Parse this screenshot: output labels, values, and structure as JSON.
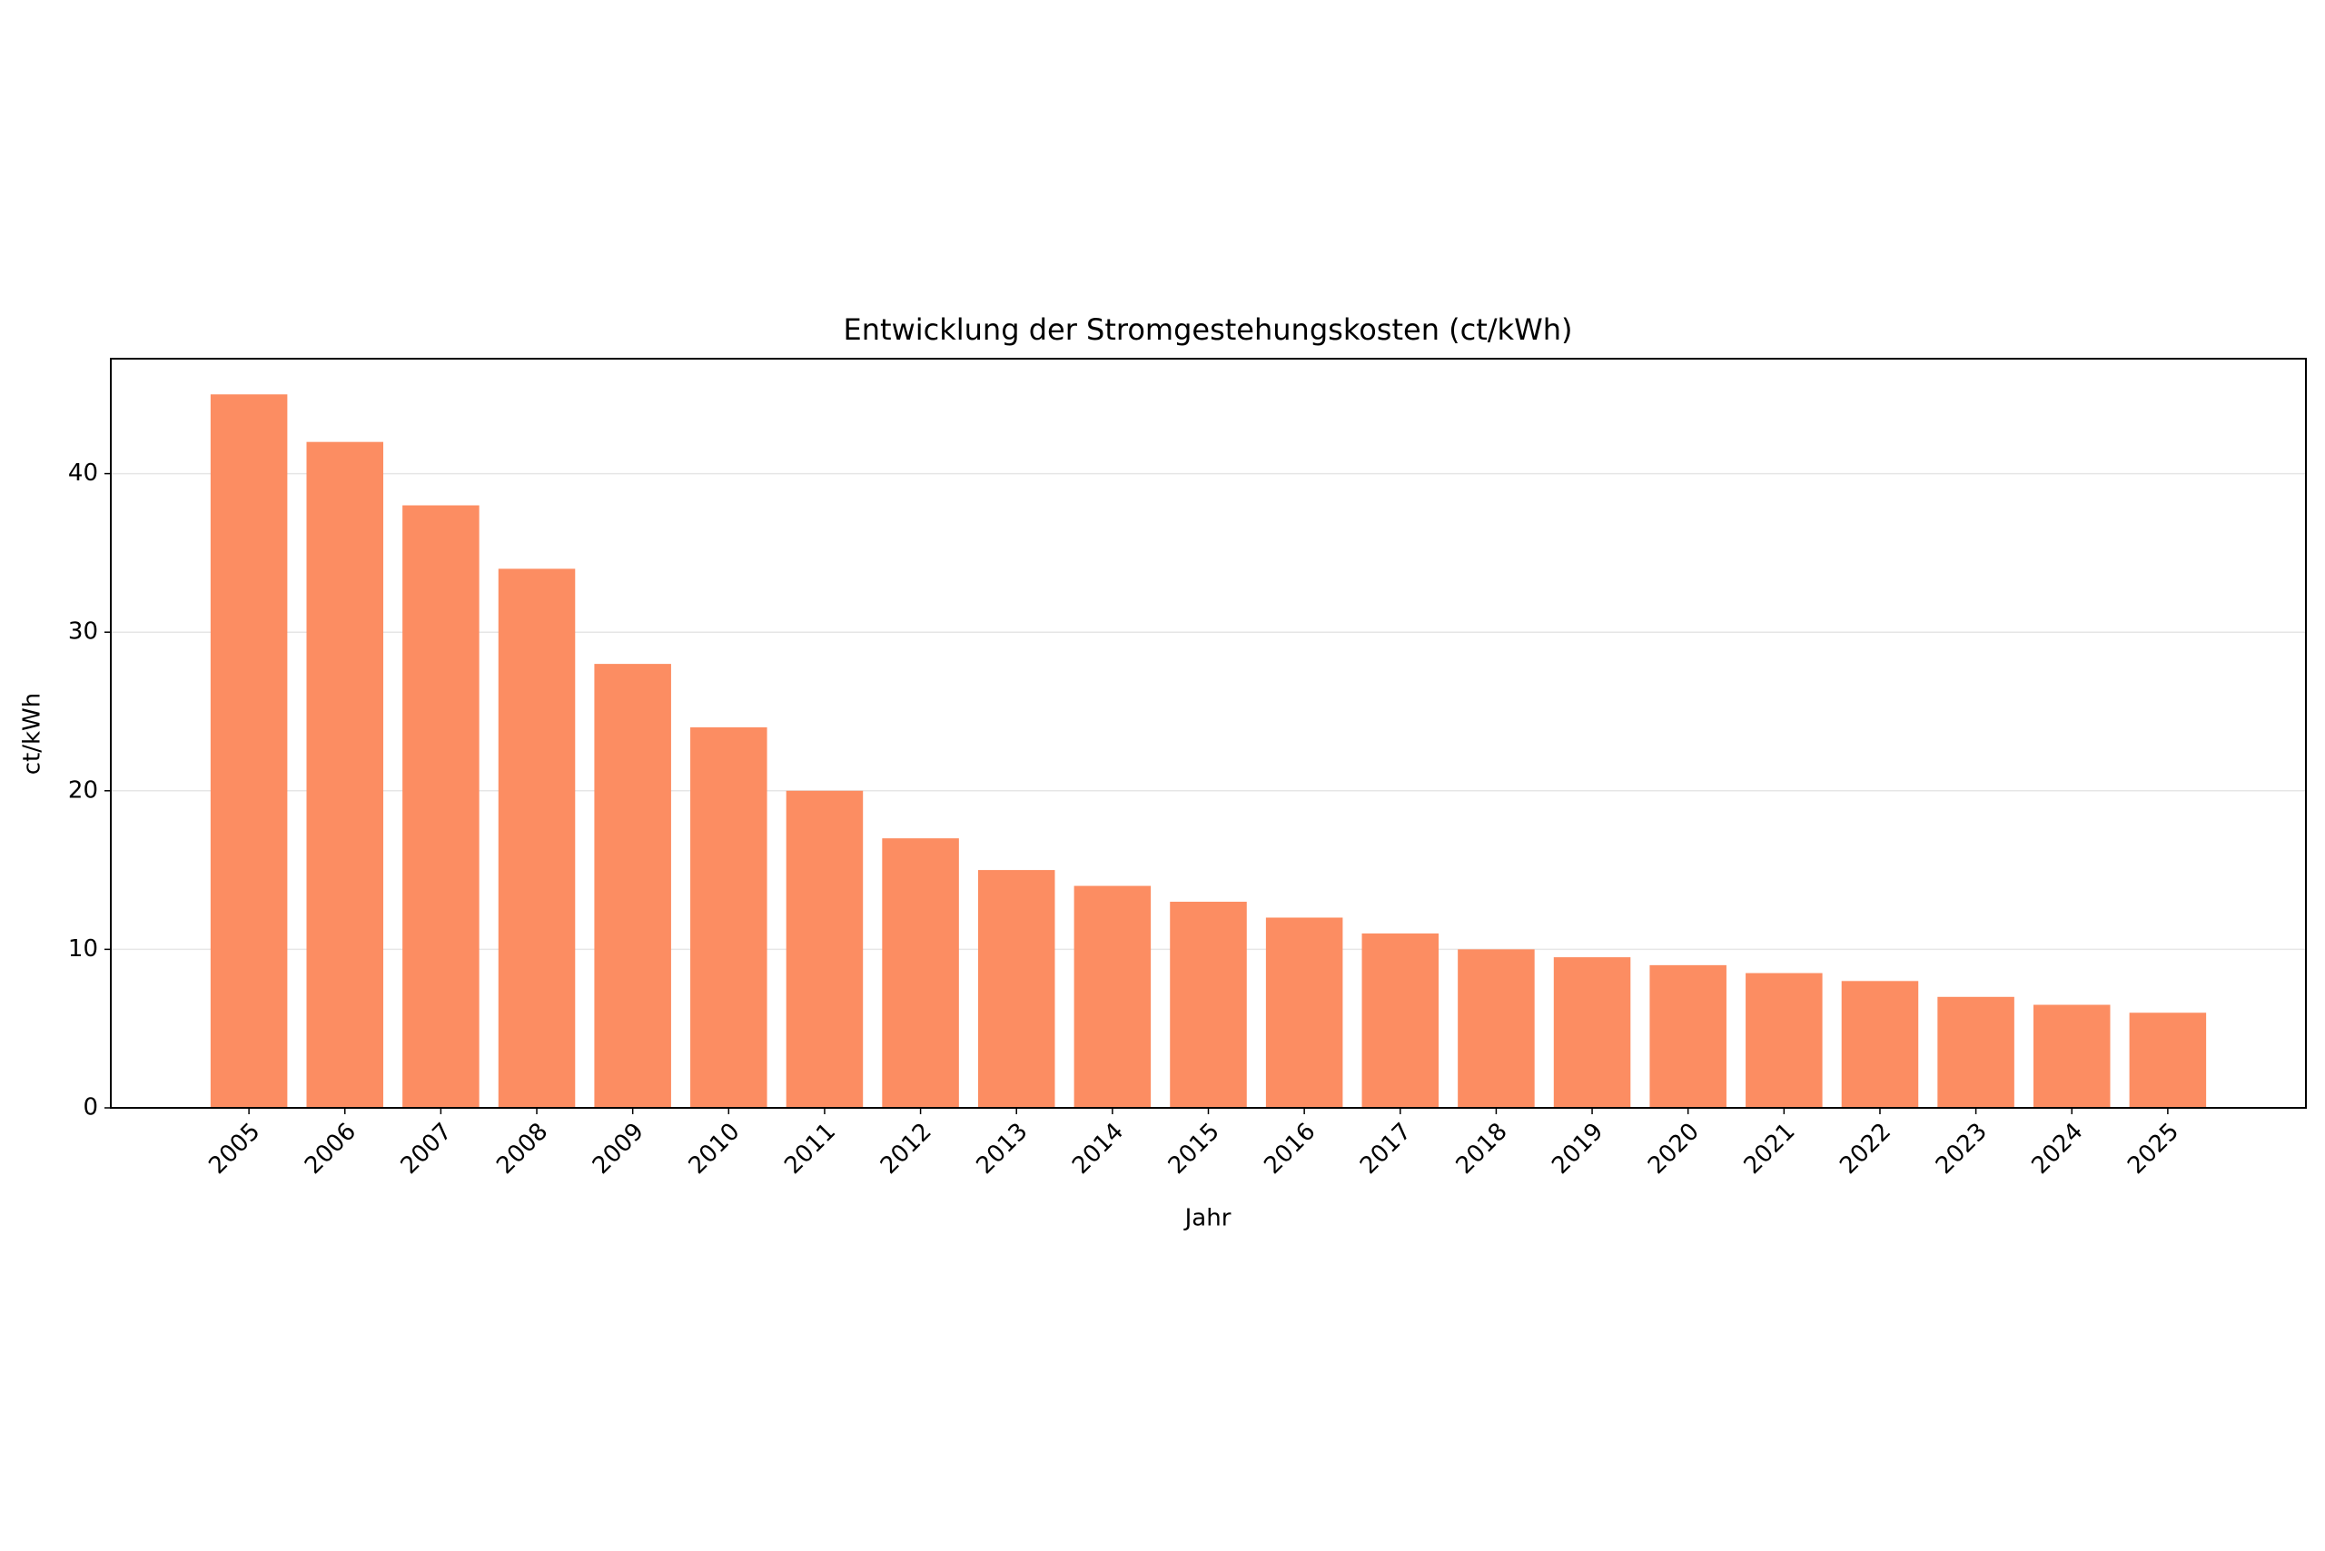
{
  "chart_data": {
    "type": "bar",
    "title": "Entwicklung der Stromgestehungskosten (ct/kWh)",
    "x_label": "Jahr",
    "y_label": "ct/kWh",
    "categories": [
      "2005",
      "2006",
      "2007",
      "2008",
      "2009",
      "2010",
      "2011",
      "2012",
      "2013",
      "2014",
      "2015",
      "2016",
      "2017",
      "2018",
      "2019",
      "2020",
      "2021",
      "2022",
      "2023",
      "2024",
      "2025"
    ],
    "values": [
      45,
      42,
      38,
      34,
      28,
      24,
      20,
      17,
      15,
      14,
      13,
      12,
      11,
      10,
      9.5,
      9,
      8.5,
      8,
      7,
      6.5,
      6
    ],
    "color": "#fc8d62",
    "ylim": [
      0,
      47.25
    ],
    "yticks": [
      0,
      10,
      20,
      30,
      40
    ],
    "grid": true
  }
}
